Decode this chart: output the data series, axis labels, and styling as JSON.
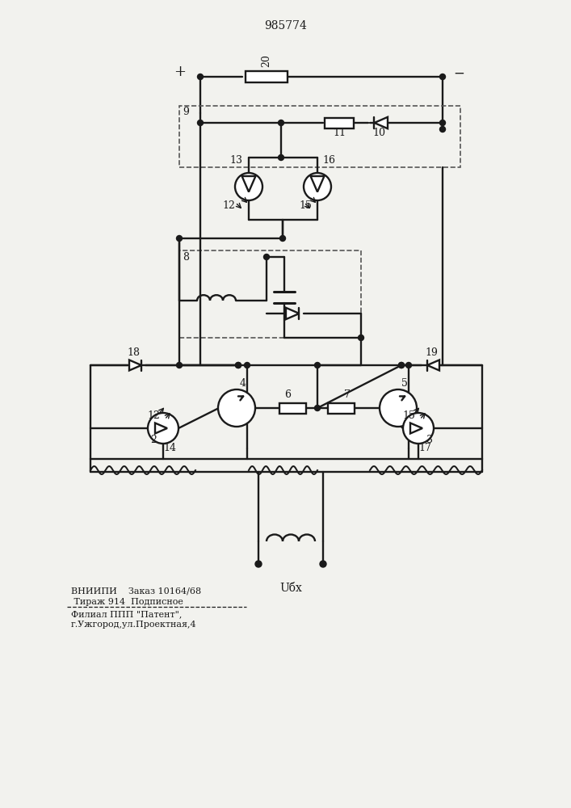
{
  "title": "985774",
  "bg_color": "#f2f2ee",
  "line_color": "#1a1a1a",
  "text_color": "#1a1a1a",
  "footer_line1": "ВНИИПИ    Заказ 10164/68",
  "footer_line2": " Тираж 914  Подписное",
  "footer_line3": "Филиал ППП \"Патент\",",
  "footer_line4": "г.Ужгород,ул.Проектная,4",
  "input_label": "Uбх"
}
